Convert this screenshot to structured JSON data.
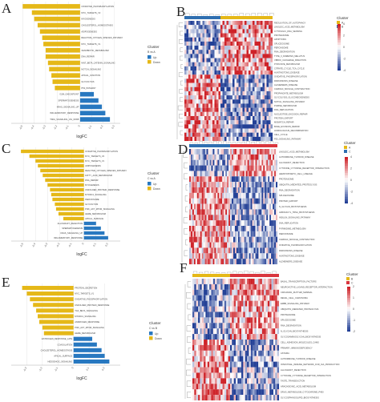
{
  "panels": {
    "A": "A",
    "B": "B",
    "C": "C",
    "D": "D",
    "E": "E",
    "F": "F"
  },
  "chart_data": [
    {
      "panel": "A",
      "type": "bar",
      "orientation": "horizontal",
      "xlabel": "logFC",
      "xlim": [
        -0.6,
        0.35
      ],
      "xticks": [
        -0.5,
        -0.4,
        -0.3,
        -0.2,
        -0.1,
        0,
        0.1,
        0.2,
        0.3
      ],
      "legend": {
        "title": "Cluster",
        "subtitle": "B vs A",
        "entries": [
          "Up",
          "Down"
        ],
        "colors": [
          "#2878c0",
          "#e5b818"
        ],
        "placement": "right"
      },
      "categories": [
        "OXIDATIVE_PHOSPHORYLATION",
        "MYC_TARGETS_V2",
        "MYOGENESIS",
        "CHOLESTEROL_HOMEOSTASIS",
        "ADIPOGENESIS",
        "REACTIVE_OXYGEN_SPECIES_PATHWAY",
        "MYC_TARGETS_V1",
        "XENOBIOTIC_METABOLISM",
        "DNA_REPAIR",
        "WNT_BETA_CATENIN_SIGNALING",
        "NOTCH_SIGNALING",
        "APICAL_JUNCTION",
        "GLYCOLYSIS",
        "P53_PATHWAY",
        "G2M_CHECKPOINT",
        "SPERMATOGENESIS",
        "KRAS_SIGNALING_UP",
        "INFLAMMATORY_RESPONSE",
        "TNFA_SIGNALING_VIA_NFKB"
      ],
      "values": [
        -0.5,
        -0.42,
        -0.4,
        -0.37,
        -0.35,
        -0.33,
        -0.32,
        -0.3,
        -0.3,
        -0.28,
        -0.27,
        -0.25,
        -0.24,
        -0.22,
        0.12,
        0.16,
        0.19,
        0.22,
        0.26
      ]
    },
    {
      "panel": "C",
      "type": "bar",
      "orientation": "horizontal",
      "xlabel": "logFC",
      "xlim": [
        -0.6,
        0.3
      ],
      "xticks": [
        -0.5,
        -0.4,
        -0.3,
        -0.2,
        -0.1,
        0,
        0.1,
        0.2
      ],
      "legend": {
        "title": "Cluster",
        "subtitle": "C vs A",
        "entries": [
          "Up",
          "Down"
        ],
        "colors": [
          "#2878c0",
          "#e5b818"
        ],
        "placement": "right"
      },
      "categories": [
        "OXIDATIVE_PHOSPHORYLATION",
        "MYC_TARGETS_V2",
        "MYC_TARGETS_V1",
        "ADIPOGENESIS",
        "REACTIVE_OXYGEN_SPECIES_PATHWAY",
        "FATTY_ACID_METABOLISM",
        "DNA_REPAIR",
        "MYOGENESIS",
        "UNFOLDED_PROTEIN_RESPONSE",
        "MTORC1_SIGNALING",
        "PEROXISOME",
        "GLYCOLYSIS",
        "PI3K_AKT_MTOR_SIGNALING",
        "HEME_METABOLISM",
        "APICAL_SURFACE",
        "ALLOGRAFT_REJECTION",
        "SPERMATOGENESIS",
        "KRAS_SIGNALING_UP",
        "INFLAMMATORY_RESPONSE"
      ],
      "values": [
        -0.52,
        -0.45,
        -0.4,
        -0.38,
        -0.36,
        -0.34,
        -0.32,
        -0.3,
        -0.28,
        -0.27,
        -0.26,
        -0.24,
        -0.23,
        -0.21,
        -0.17,
        0.1,
        0.14,
        0.17,
        0.2
      ]
    },
    {
      "panel": "E",
      "type": "bar",
      "orientation": "horizontal",
      "xlabel": "logFC",
      "xlim": [
        -0.4,
        0.3
      ],
      "xticks": [
        -0.3,
        -0.2,
        -0.1,
        0,
        0.1,
        0.2
      ],
      "legend": {
        "title": "Cluster",
        "subtitle": "C vs B",
        "entries": [
          "Up",
          "Down"
        ],
        "colors": [
          "#2878c0",
          "#e5b818"
        ],
        "placement": "right"
      },
      "categories": [
        "PROTEIN_SECRETION",
        "MYC_TARGETS_V1",
        "OXIDATIVE_PHOSPHORYLATION",
        "UNFOLDED_PROTEIN_RESPONSE",
        "TGF_BETA_SIGNALING",
        "MTORC1_SIGNALING",
        "ANDROGEN_RESPONSE",
        "PI3K_AKT_MTOR_SIGNALING",
        "HEME_METABOLISM",
        "ESTROGEN_RESPONSE_LATE",
        "COAGULATION",
        "CHOLESTEROL_HOMEOSTASIS",
        "APICAL_SURFACE",
        "HEDGEHOG_SIGNALING"
      ],
      "values": [
        -0.33,
        -0.3,
        -0.28,
        -0.26,
        -0.24,
        -0.23,
        -0.22,
        -0.2,
        -0.19,
        0.12,
        0.15,
        0.18,
        0.2,
        0.23
      ]
    },
    {
      "panel": "B",
      "type": "heatmap",
      "legend": {
        "title": "Cluster",
        "entries": [
          "A",
          "B"
        ],
        "colors": [
          "#e5b818",
          "#2f6fb0"
        ],
        "scale_ticks": [
          "4",
          "2",
          "0",
          "-2",
          "-4"
        ],
        "placement": "right"
      },
      "rows": [
        "REGULATION_OF_AUTOPHAGY",
        "LINOLEIC_ACID_METABOLISM",
        "CYTOSOLIC_DNA_SENSING",
        "PROTEASOME",
        "APOPTOSIS",
        "SPLICEOSOME",
        "PEROXISOME",
        "RNA_DEGRADATION",
        "TYPE_II_DIABETES_MELLITUS",
        "VIBRIO_CHOLERAE_INFECTION",
        "PYRUVATE_METABOLISM",
        "CITRATE_CYCLE_TCA_CYCLE",
        "HUNTINGTONS_DISEASE",
        "OXIDATIVE_PHOSPHORYLATION",
        "PARKINSONS_DISEASE",
        "ALZHEIMERS_DISEASE",
        "CARDIAC_MUSCLE_CONTRACTION",
        "PROPANOATE_METABOLISM",
        "GLYCOLYSIS_GLUCONEOGENESIS",
        "NOTCH_SIGNALING_PATHWAY",
        "PURINE_METABOLISM",
        "DNA_REPLICATION",
        "NUCLEOTIDE_EXCISION_REPAIR",
        "PROTEIN_EXPORT",
        "MISMATCH_REPAIR",
        "BASE_EXCISION_REPAIR",
        "HOMOLOGOUS_RECOMBINATION",
        "CELL_CYCLE",
        "P53_SIGNALING_PATHWAY"
      ],
      "column_groups": [
        {
          "name": "B",
          "count": 18
        },
        {
          "name": "A",
          "count": 26
        }
      ],
      "split_row": 13
    },
    {
      "panel": "D",
      "type": "heatmap",
      "legend": {
        "title": "Cluster",
        "entries": [
          "A",
          "C"
        ],
        "colors": [
          "#e5b818",
          "#2f6fb0"
        ],
        "scale_ticks": [
          "4",
          "2",
          "0",
          "-2",
          "-4"
        ],
        "placement": "right"
      },
      "rows": [
        "LINOLEIC_ACID_METABOLISM",
        "AUTOIMMUNE_THYROID_DISEASE",
        "ALLOGRAFT_REJECTION",
        "CYTOKINE_CYTOKINE_RECEPTOR_INTERACTION",
        "HEMATOPOIETIC_CELL_LINEAGE",
        "PROTEASOME",
        "UBIQUITIN_MEDIATED_PROTEOLYSIS",
        "RNA_DEGRADATION",
        "SPLICEOSOME",
        "PROTEIN_EXPORT",
        "N_GLYCAN_BIOSYNTHESIS",
        "AMINOACYL_TRNA_BIOSYNTHESIS",
        "INSULIN_SIGNALING_PATHWAY",
        "DNA_REPLICATION",
        "PYRIMIDINE_METABOLISM",
        "PEROXISOME",
        "CARDIAC_MUSCLE_CONTRACTION",
        "OXIDATIVE_PHOSPHORYLATION",
        "PARKINSONS_DISEASE",
        "HUNTINGTONS_DISEASE",
        "ALZHEIMERS_DISEASE"
      ],
      "column_groups": [
        {
          "name": "A",
          "count": 26
        },
        {
          "name": "C",
          "count": 30
        }
      ],
      "split_row": 5
    },
    {
      "panel": "F",
      "type": "heatmap",
      "legend": {
        "title": "Cluster",
        "entries": [
          "B",
          "C"
        ],
        "colors": [
          "#e5b818",
          "#d9363e"
        ],
        "scale_ticks": [
          "2",
          "1",
          "0",
          "-1",
          "-2"
        ],
        "placement": "right"
      },
      "rows": [
        "BASAL_TRANSCRIPTION_FACTORS",
        "NEUROACTIVE_LIGAND_RECEPTOR_INTERACTION",
        "CIRCADIAN_RHYTHM_MAMMAL",
        "RENAL_CELL_CARCINOMA",
        "ERBB_SIGNALING_PATHWAY",
        "UBIQUITIN_MEDIATED_PROTEOLYSIS",
        "PROTEASOME",
        "SPLICEOSOME",
        "RNA_DEGRADATION",
        "N_GLYCAN_BIOSYNTHESIS",
        "GLYCOSAMINOGLYCAN_BIOSYNTHESIS",
        "CELL_ADHESION_MOLECULES_CAMS",
        "PRIMARY_IMMUNODEFICIENCY",
        "ASTHMA",
        "AUTOIMMUNE_THYROID_DISEASE",
        "INTESTINAL_IMMUNE_NETWORK_FOR_IGA_PRODUCTION",
        "ALLOGRAFT_REJECTION",
        "CYTOKINE_CYTOKINE_RECEPTOR_INTERACTION",
        "TASTE_TRANSDUCTION",
        "ARACHIDONIC_ACID_METABOLISM",
        "DRUG_METABOLISM_CYTOCHROME_P450",
        "GLYCOSPHINGOLIPID_BIOSYNTHESIS"
      ],
      "column_groups": [
        {
          "name": "B",
          "count": 20
        },
        {
          "name": "C",
          "count": 26
        }
      ],
      "split_row": 11
    }
  ]
}
